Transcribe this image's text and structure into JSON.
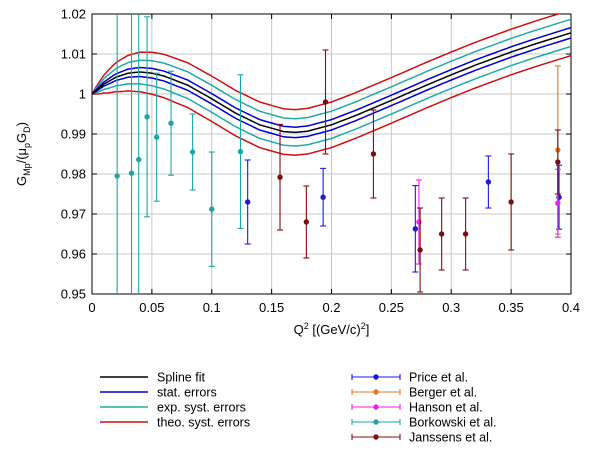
{
  "chart_data": {
    "type": "scatter",
    "xlabel": "Q² [(GeV/c)²]",
    "ylabel": "G_Mp/(μ_p G_D)",
    "xlim": [
      0,
      0.4
    ],
    "ylim": [
      0.95,
      1.02
    ],
    "xticks": [
      0,
      0.05,
      0.1,
      0.15,
      0.2,
      0.25,
      0.3,
      0.35,
      0.4
    ],
    "xtick_labels": [
      "0",
      "0.05",
      "0.1",
      "0.15",
      "0.2",
      "0.25",
      "0.3",
      "0.35",
      "0.4"
    ],
    "yticks": [
      0.95,
      0.96,
      0.97,
      0.98,
      0.99,
      1.0,
      1.01,
      1.02
    ],
    "ytick_labels": [
      "0.95",
      "0.96",
      "0.97",
      "0.98",
      "0.99",
      "1",
      "1.01",
      "1.02"
    ],
    "grid": true,
    "legend_position": "bottom",
    "curves": [
      {
        "name": "Spline fit",
        "color": "#000000",
        "offset": 0.0
      },
      {
        "name": "stat. errors",
        "color": "#0000cc",
        "offset": 0.0013
      },
      {
        "name": "exp. syst. errors",
        "color": "#22aaaa",
        "offset": 0.0034
      },
      {
        "name": "theo. syst. errors",
        "color": "#cc1111",
        "offset": 0.0057
      }
    ],
    "spline_fit": {
      "x": [
        0,
        0.01,
        0.02,
        0.03,
        0.04,
        0.05,
        0.06,
        0.08,
        0.1,
        0.12,
        0.14,
        0.16,
        0.17,
        0.18,
        0.2,
        0.22,
        0.25,
        0.28,
        0.3,
        0.32,
        0.35,
        0.37,
        0.4
      ],
      "y": [
        1.0,
        1.0025,
        1.0042,
        1.0052,
        1.0055,
        1.0052,
        1.0045,
        1.0022,
        0.9988,
        0.9952,
        0.9923,
        0.9906,
        0.9904,
        0.9907,
        0.9923,
        0.9946,
        0.9984,
        1.0023,
        1.0048,
        1.0072,
        1.0105,
        1.0125,
        1.0153
      ]
    },
    "series": [
      {
        "name": "Price et al.",
        "color": "#1b1bd6",
        "points": [
          {
            "x": 0.13,
            "y": 0.973,
            "err": 0.0105
          },
          {
            "x": 0.193,
            "y": 0.9742,
            "err": 0.0072
          },
          {
            "x": 0.27,
            "y": 0.9663,
            "err": 0.0108
          },
          {
            "x": 0.331,
            "y": 0.978,
            "err": 0.0065
          },
          {
            "x": 0.39,
            "y": 0.9742,
            "err": 0.008
          }
        ]
      },
      {
        "name": "Berger et al.",
        "color": "#e87722",
        "points": [
          {
            "x": 0.389,
            "y": 0.986,
            "err": 0.021
          }
        ]
      },
      {
        "name": "Hanson et al.",
        "color": "#ee22ee",
        "points": [
          {
            "x": 0.273,
            "y": 0.968,
            "err": 0.0105
          },
          {
            "x": 0.389,
            "y": 0.9727,
            "err": 0.0085
          }
        ]
      },
      {
        "name": "Borkowski et al.",
        "color": "#1fa5a5",
        "points": [
          {
            "x": 0.021,
            "y": 0.9795,
            "err": 0.045
          },
          {
            "x": 0.033,
            "y": 0.9802,
            "err": 0.045
          },
          {
            "x": 0.039,
            "y": 0.9836,
            "err": 0.04
          },
          {
            "x": 0.046,
            "y": 0.9943,
            "err": 0.025
          },
          {
            "x": 0.054,
            "y": 0.9892,
            "err": 0.016
          },
          {
            "x": 0.066,
            "y": 0.9927,
            "err": 0.013
          },
          {
            "x": 0.084,
            "y": 0.9855,
            "err": 0.0095
          },
          {
            "x": 0.1,
            "y": 0.9712,
            "err": 0.0143
          },
          {
            "x": 0.124,
            "y": 0.9856,
            "err": 0.0192
          }
        ]
      },
      {
        "name": "Janssens et al.",
        "color": "#7a1010",
        "points": [
          {
            "x": 0.157,
            "y": 0.9792,
            "err": 0.0132
          },
          {
            "x": 0.179,
            "y": 0.968,
            "err": 0.009
          },
          {
            "x": 0.195,
            "y": 0.998,
            "err": 0.013
          },
          {
            "x": 0.235,
            "y": 0.985,
            "err": 0.011
          },
          {
            "x": 0.274,
            "y": 0.961,
            "err": 0.0105
          },
          {
            "x": 0.292,
            "y": 0.965,
            "err": 0.009
          },
          {
            "x": 0.312,
            "y": 0.965,
            "err": 0.009
          },
          {
            "x": 0.35,
            "y": 0.973,
            "err": 0.012
          },
          {
            "x": 0.389,
            "y": 0.983,
            "err": 0.008
          }
        ]
      }
    ]
  }
}
